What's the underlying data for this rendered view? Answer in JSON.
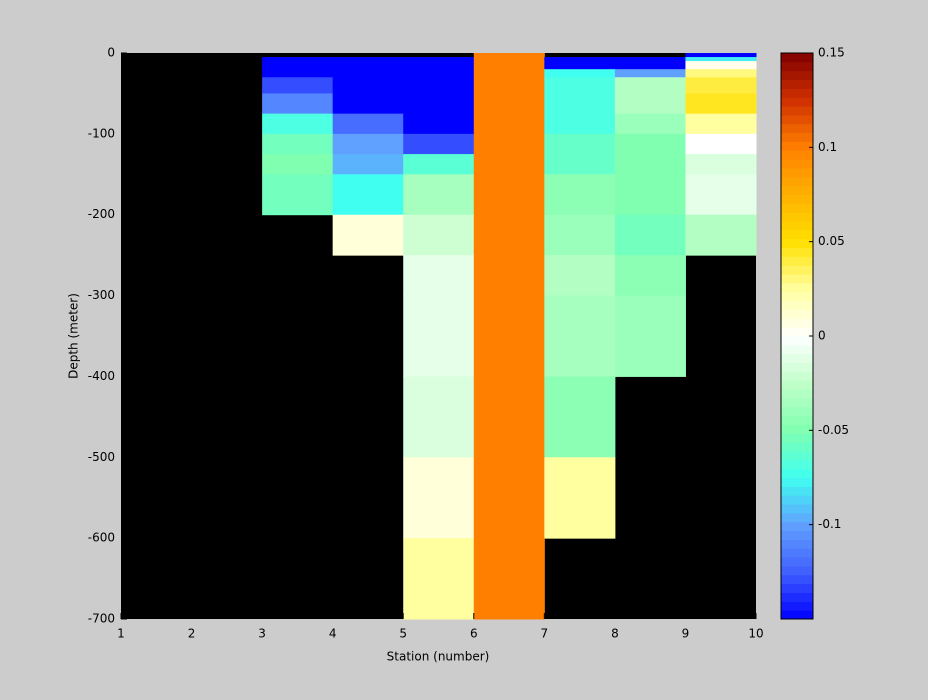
{
  "chart_data": {
    "type": "heatmap",
    "xlabel": "Station (number)",
    "ylabel": "Depth (meter)",
    "x": [
      1,
      2,
      3,
      4,
      5,
      6,
      7,
      8,
      9,
      10
    ],
    "y": [
      0,
      -5,
      -10,
      -20,
      -30,
      -50,
      -75,
      -100,
      -125,
      -150,
      -200,
      -250,
      -300,
      -400,
      -500,
      -600,
      -700
    ],
    "values": [
      [
        null,
        null,
        null,
        null,
        null,
        0.1,
        null,
        null,
        -0.15
      ],
      [
        null,
        null,
        -0.15,
        -0.15,
        -0.15,
        0.1,
        -0.15,
        -0.15,
        -0.08
      ],
      [
        null,
        null,
        -0.15,
        -0.15,
        -0.15,
        0.1,
        -0.15,
        -0.15,
        0.005
      ],
      [
        null,
        null,
        -0.15,
        -0.15,
        -0.15,
        0.1,
        -0.075,
        -0.1,
        0.03
      ],
      [
        null,
        null,
        -0.13,
        -0.15,
        -0.15,
        0.1,
        -0.07,
        -0.03,
        0.04
      ],
      [
        null,
        null,
        -0.11,
        -0.15,
        -0.15,
        0.1,
        -0.07,
        -0.03,
        0.045
      ],
      [
        null,
        null,
        -0.07,
        -0.12,
        -0.15,
        0.1,
        -0.07,
        -0.04,
        0.025
      ],
      [
        null,
        null,
        -0.055,
        -0.1,
        -0.13,
        0.1,
        -0.06,
        -0.05,
        0.0
      ],
      [
        null,
        null,
        -0.05,
        -0.095,
        -0.065,
        0.1,
        -0.06,
        -0.05,
        -0.015
      ],
      [
        null,
        null,
        -0.055,
        -0.075,
        -0.035,
        0.1,
        -0.045,
        -0.05,
        -0.01
      ],
      [
        null,
        null,
        null,
        0.01,
        -0.02,
        0.1,
        -0.04,
        -0.055,
        -0.03
      ],
      [
        null,
        null,
        null,
        null,
        -0.01,
        0.1,
        -0.03,
        -0.045,
        null
      ],
      [
        null,
        null,
        null,
        null,
        -0.01,
        0.1,
        -0.035,
        -0.04,
        null
      ],
      [
        null,
        null,
        null,
        null,
        -0.015,
        0.1,
        -0.045,
        null,
        null
      ],
      [
        null,
        null,
        null,
        null,
        0.01,
        0.1,
        0.025,
        null,
        null
      ],
      [
        null,
        null,
        null,
        null,
        0.025,
        0.1,
        null,
        null,
        null
      ]
    ],
    "xlim": [
      1,
      10
    ],
    "ylim": [
      -700,
      0
    ],
    "xticks": [
      1,
      2,
      3,
      4,
      5,
      6,
      7,
      8,
      9,
      10
    ],
    "yticks": [
      0,
      -100,
      -200,
      -300,
      -400,
      -500,
      -600,
      -700
    ],
    "missing_color": "#000000",
    "colormap": [
      "#0000ff",
      "#4060ff",
      "#60a0ff",
      "#40fff0",
      "#80ffb0",
      "#c0ffc8",
      "#ffffff",
      "#ffffa0",
      "#ffe000",
      "#ffb000",
      "#ff8000",
      "#d03000",
      "#800000"
    ],
    "clim": [
      -0.15,
      0.15
    ],
    "cticks": [
      0.15,
      0.1,
      0.05,
      0,
      -0.05,
      -0.1
    ]
  }
}
